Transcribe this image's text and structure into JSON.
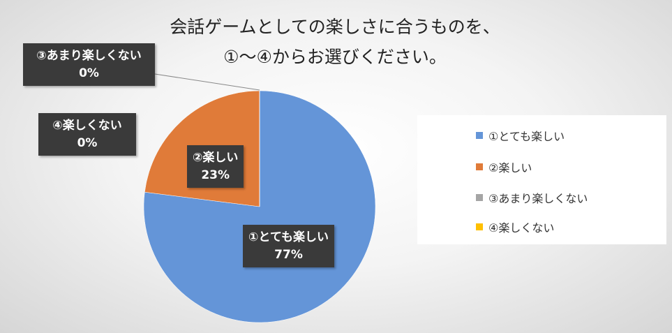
{
  "chart_data": {
    "type": "pie",
    "title": [
      "会話ゲームとしての楽しさに合うものを、",
      "①～④からお選びください。"
    ],
    "categories": [
      "①とても楽しい",
      "②楽しい",
      "③あまり楽しくない",
      "④楽しくない"
    ],
    "values": [
      77,
      23,
      0,
      0
    ],
    "value_labels": [
      "77%",
      "23%",
      "0%",
      "0%"
    ],
    "colors": [
      "#6495d8",
      "#e07b39",
      "#a5a5a5",
      "#ffc000"
    ],
    "legend": "right"
  }
}
